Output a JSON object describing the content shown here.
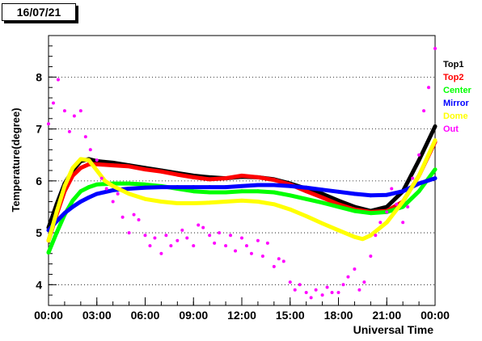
{
  "date_label": "16/07/21",
  "colors": {
    "Top1": "#000000",
    "Top2": "#ff0000",
    "Center": "#00ff00",
    "Mirror": "#0000ff",
    "Dome": "#ffff00",
    "Out": "#ff00ff"
  },
  "chart_data": {
    "type": "scatter",
    "title": "",
    "xlabel": "Universal Time",
    "ylabel": "Temperature(degree)",
    "xlim": [
      0,
      24
    ],
    "ylim": [
      3.6,
      8.8
    ],
    "grid": "horizontal dotted",
    "legend_position": "right",
    "x_ticks": [
      "00:00",
      "03:00",
      "06:00",
      "09:00",
      "12:00",
      "15:00",
      "18:00",
      "21:00",
      "00:00"
    ],
    "y_ticks": [
      "4",
      "5",
      "6",
      "7",
      "8"
    ],
    "series": [
      {
        "name": "Top1",
        "x": [
          0,
          0.5,
          1,
          1.5,
          2,
          2.5,
          3,
          4,
          5,
          6,
          7,
          8,
          9,
          10,
          11,
          12,
          13,
          14,
          15,
          16,
          17,
          18,
          19,
          20,
          21,
          22,
          23,
          24
        ],
        "y": [
          5.1,
          5.55,
          5.95,
          6.2,
          6.38,
          6.42,
          6.38,
          6.35,
          6.3,
          6.25,
          6.2,
          6.15,
          6.1,
          6.07,
          6.05,
          6.08,
          6.07,
          6.03,
          5.95,
          5.85,
          5.75,
          5.62,
          5.5,
          5.42,
          5.5,
          5.8,
          6.4,
          7.05
        ]
      },
      {
        "name": "Top2",
        "x": [
          0,
          0.5,
          1,
          1.5,
          2,
          2.5,
          3,
          4,
          5,
          6,
          7,
          8,
          9,
          10,
          11,
          12,
          13,
          14,
          15,
          16,
          17,
          18,
          19,
          20,
          21,
          22,
          23,
          24
        ],
        "y": [
          4.85,
          5.35,
          5.8,
          6.1,
          6.25,
          6.32,
          6.32,
          6.3,
          6.28,
          6.22,
          6.18,
          6.12,
          6.07,
          6.03,
          6.05,
          6.1,
          6.07,
          6.02,
          5.93,
          5.8,
          5.68,
          5.55,
          5.45,
          5.4,
          5.42,
          5.6,
          6.1,
          6.75
        ]
      },
      {
        "name": "Center",
        "x": [
          0,
          0.5,
          1,
          1.5,
          2,
          2.5,
          3,
          4,
          5,
          6,
          7,
          8,
          9,
          10,
          11,
          12,
          13,
          14,
          15,
          16,
          17,
          18,
          19,
          20,
          21,
          22,
          23,
          24
        ],
        "y": [
          4.62,
          5.0,
          5.35,
          5.62,
          5.8,
          5.88,
          5.93,
          5.95,
          5.95,
          5.93,
          5.9,
          5.85,
          5.8,
          5.78,
          5.78,
          5.8,
          5.8,
          5.78,
          5.72,
          5.65,
          5.58,
          5.5,
          5.42,
          5.38,
          5.4,
          5.5,
          5.8,
          6.22
        ]
      },
      {
        "name": "Mirror",
        "x": [
          0,
          0.5,
          1,
          1.5,
          2,
          2.5,
          3,
          4,
          5,
          6,
          7,
          8,
          9,
          10,
          11,
          12,
          13,
          14,
          15,
          16,
          17,
          18,
          19,
          20,
          21,
          22,
          23,
          24
        ],
        "y": [
          5.05,
          5.22,
          5.38,
          5.5,
          5.6,
          5.68,
          5.75,
          5.82,
          5.85,
          5.87,
          5.88,
          5.88,
          5.88,
          5.88,
          5.88,
          5.9,
          5.92,
          5.92,
          5.9,
          5.87,
          5.83,
          5.79,
          5.75,
          5.72,
          5.73,
          5.8,
          5.95,
          6.05
        ]
      },
      {
        "name": "Dome",
        "x": [
          0,
          0.5,
          1,
          1.5,
          2,
          2.5,
          3,
          3.5,
          4,
          5,
          6,
          7,
          8,
          9,
          10,
          11,
          12,
          13,
          14,
          15,
          16,
          17,
          18,
          19,
          19.5,
          20,
          21,
          22,
          23,
          24
        ],
        "y": [
          4.85,
          5.4,
          5.9,
          6.25,
          6.42,
          6.4,
          6.2,
          6.0,
          5.9,
          5.75,
          5.65,
          5.6,
          5.57,
          5.57,
          5.58,
          5.6,
          5.62,
          5.6,
          5.55,
          5.45,
          5.32,
          5.18,
          5.05,
          4.92,
          4.88,
          4.95,
          5.2,
          5.6,
          6.1,
          6.78
        ]
      },
      {
        "name": "Out",
        "x": [
          0,
          0.3,
          0.6,
          1,
          1.3,
          1.6,
          2,
          2.3,
          2.6,
          3,
          3.3,
          3.6,
          4,
          4.3,
          4.6,
          5,
          5.3,
          5.6,
          6,
          6.3,
          6.6,
          7,
          7.3,
          7.6,
          8,
          8.3,
          8.6,
          9,
          9.3,
          9.6,
          10,
          10.3,
          10.6,
          11,
          11.3,
          11.6,
          12,
          12.3,
          12.6,
          13,
          13.3,
          13.6,
          14,
          14.3,
          14.6,
          15,
          15.3,
          15.6,
          16,
          16.3,
          16.6,
          17,
          17.3,
          17.6,
          18,
          18.3,
          18.6,
          19,
          19.3,
          19.6,
          20,
          20.3,
          20.6,
          21,
          21.3,
          21.6,
          22,
          22.3,
          22.6,
          23,
          23.3,
          23.6,
          24
        ],
        "y": [
          7.1,
          7.5,
          7.95,
          7.35,
          6.95,
          7.25,
          7.35,
          6.85,
          6.6,
          6.4,
          6.05,
          5.85,
          5.6,
          5.75,
          5.3,
          5.0,
          5.35,
          5.25,
          4.95,
          4.75,
          4.9,
          4.6,
          4.95,
          4.75,
          4.85,
          5.05,
          4.9,
          4.75,
          5.15,
          5.1,
          4.95,
          4.8,
          5.0,
          4.75,
          4.95,
          4.65,
          4.9,
          4.75,
          4.6,
          4.85,
          4.55,
          4.8,
          4.35,
          4.5,
          4.45,
          4.05,
          3.9,
          4.0,
          3.85,
          3.75,
          3.9,
          3.8,
          3.95,
          3.85,
          3.85,
          4.0,
          4.15,
          4.3,
          3.9,
          4.05,
          4.55,
          4.95,
          5.2,
          5.4,
          5.85,
          5.55,
          5.2,
          5.5,
          6.05,
          6.5,
          7.35,
          7.8,
          8.55
        ]
      }
    ]
  }
}
